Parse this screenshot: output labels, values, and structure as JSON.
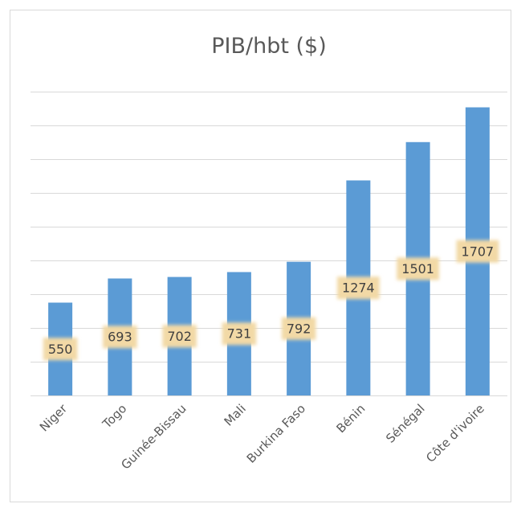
{
  "chart_data": {
    "type": "bar",
    "title": "PIB/hbt ($)",
    "categories": [
      "Niger",
      "Togo",
      "Guinée-Bissau",
      "Mali",
      "Burkina Faso",
      "Bénin",
      "Sénégal",
      "Côte d'ivoire"
    ],
    "values": [
      550,
      693,
      702,
      731,
      792,
      1274,
      1501,
      1707
    ],
    "color": "#5b9bd5",
    "ylim": [
      0,
      1800
    ],
    "yticks": [
      0,
      200,
      400,
      600,
      800,
      1000,
      1200,
      1400,
      1600,
      1800
    ],
    "grid": true
  }
}
